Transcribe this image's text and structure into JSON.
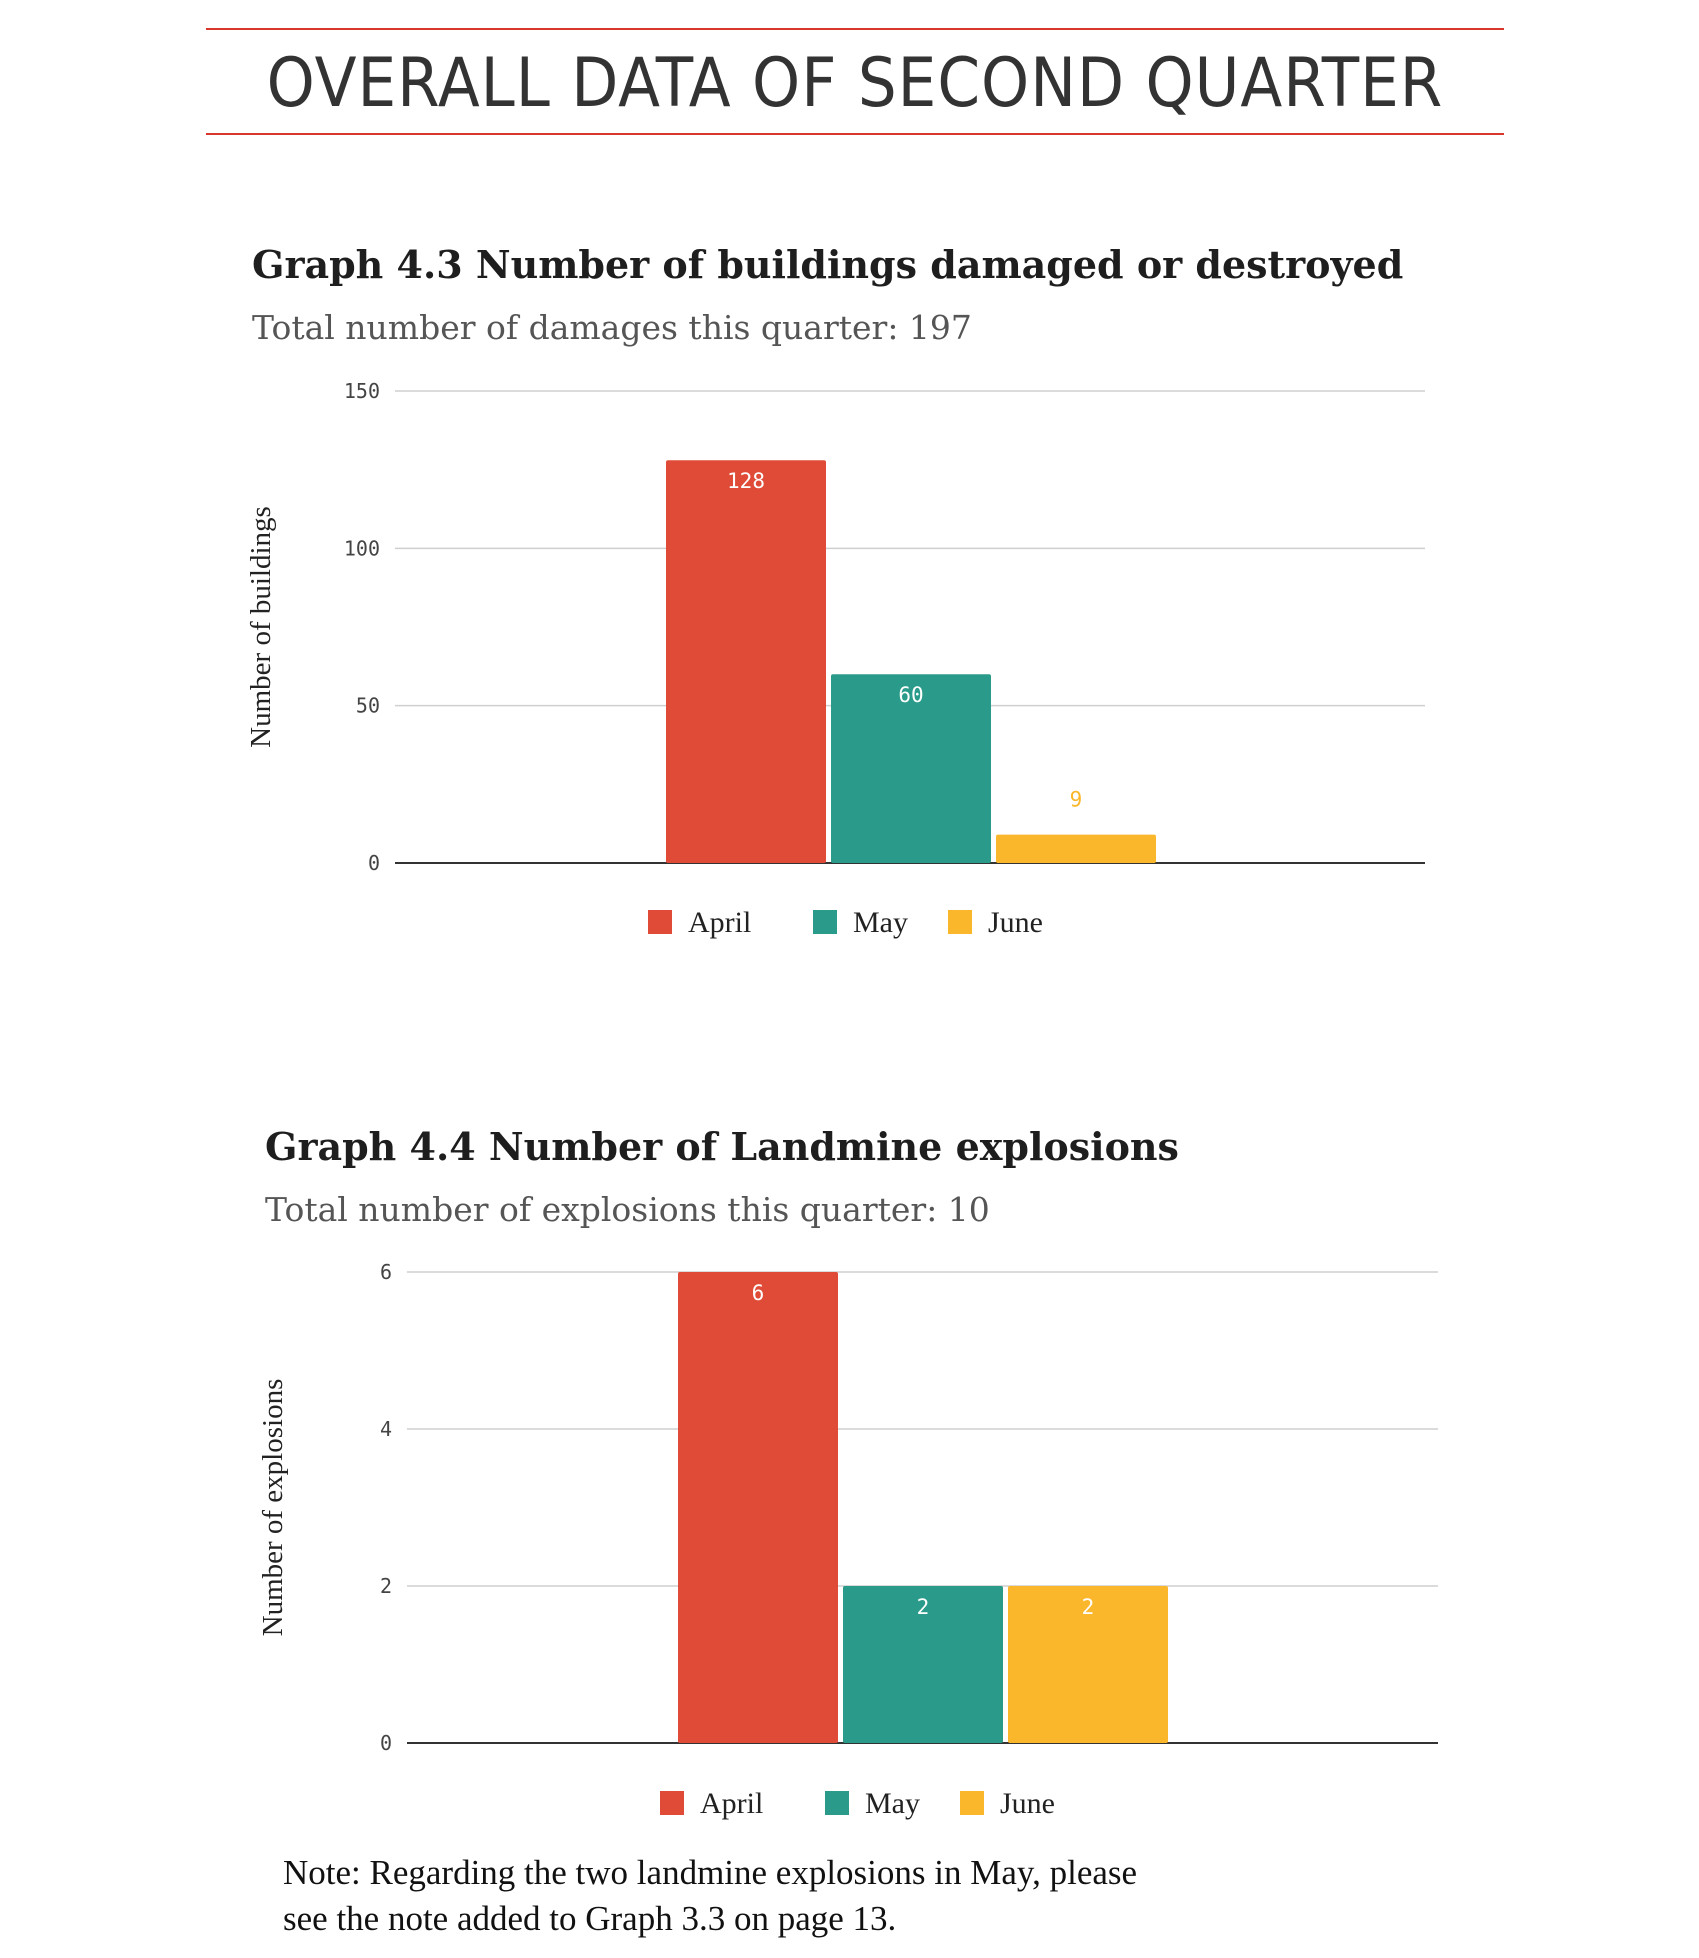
{
  "page_title": "OVERALL DATA OF SECOND QUARTER",
  "note": [
    "Note: Regarding the two landmine explosions in May, please",
    "see the note added to Graph 3.3 on page 13."
  ],
  "colors": {
    "April": "#e04b38",
    "May": "#2a9a8a",
    "June": "#fbb72c",
    "accent_rule": "#d7382b"
  },
  "chart_data": [
    {
      "type": "bar",
      "title": "Graph 4.3 Number of buildings damaged or destroyed",
      "subtitle": "Total number of damages this quarter: 197",
      "ylabel": "Number of buildings",
      "ylim": [
        0,
        150
      ],
      "yticks": [
        0,
        50,
        100,
        150
      ],
      "grid": true,
      "legend_position": "bottom",
      "series": [
        {
          "name": "April",
          "values": [
            128
          ]
        },
        {
          "name": "May",
          "values": [
            60
          ]
        },
        {
          "name": "June",
          "values": [
            9
          ]
        }
      ]
    },
    {
      "type": "bar",
      "title": "Graph 4.4 Number of Landmine explosions",
      "subtitle": "Total number of explosions this quarter: 10",
      "ylabel": "Number of explosions",
      "ylim": [
        0,
        6
      ],
      "yticks": [
        0,
        2,
        4,
        6
      ],
      "grid": true,
      "legend_position": "bottom",
      "series": [
        {
          "name": "April",
          "values": [
            6
          ]
        },
        {
          "name": "May",
          "values": [
            2
          ]
        },
        {
          "name": "June",
          "values": [
            2
          ]
        }
      ]
    }
  ]
}
